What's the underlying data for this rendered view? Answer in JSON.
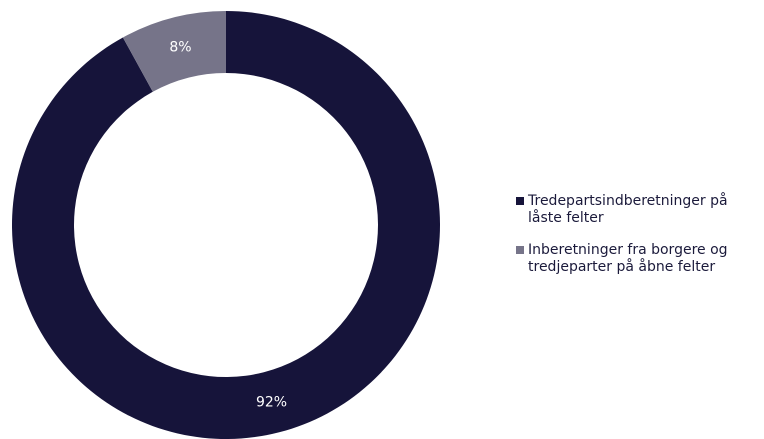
{
  "chart_data": {
    "type": "pie",
    "style": "donut",
    "series": [
      {
        "name": "Tredepartsindberetninger på låste felter",
        "value": 92,
        "label": "92%",
        "color": "#16143a"
      },
      {
        "name": "Inberetninger fra borgere og tredjeparter på åbne felter",
        "value": 8,
        "label": "8%",
        "color": "#767489"
      }
    ],
    "legend_position": "right",
    "start_angle": "top",
    "direction": "clockwise"
  }
}
